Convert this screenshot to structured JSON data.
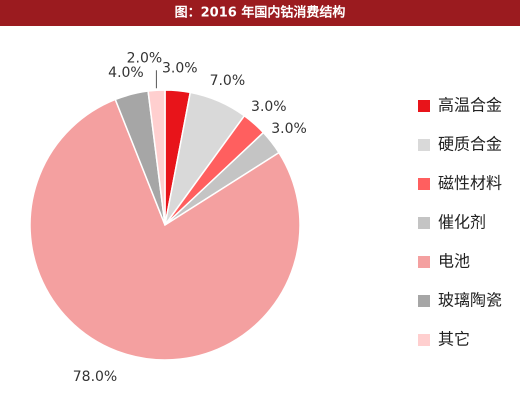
{
  "chart_data": {
    "type": "pie",
    "title": "图：2016 年国内钴消费结构",
    "categories": [
      "高温合金",
      "硬质合金",
      "磁性材料",
      "催化剂",
      "电池",
      "玻璃陶瓷",
      "其它"
    ],
    "values": [
      3,
      7,
      3,
      3,
      78,
      4,
      2
    ],
    "value_labels": [
      "3.0%",
      "7.0%",
      "3.0%",
      "3.0%",
      "78.0%",
      "4.0%",
      "2.0%"
    ],
    "colors": [
      "#e8141a",
      "#d9d9d9",
      "#ff5f5f",
      "#c4c4c4",
      "#f4a0a0",
      "#a6a6a6",
      "#ffcfcf"
    ],
    "legend": "right"
  }
}
